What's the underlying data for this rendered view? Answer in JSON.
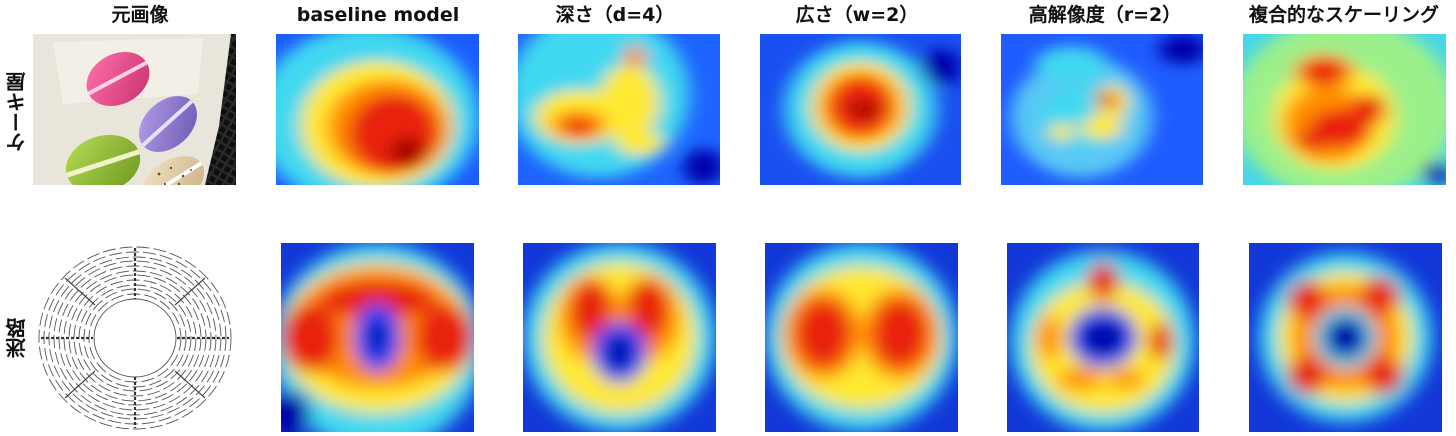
{
  "figure": {
    "columns": [
      "元画像",
      "baseline model",
      "深さ（d=4）",
      "広さ（w=2）",
      "高解像度（r=2）",
      "複合的なスケーリング"
    ],
    "rows": [
      "ケーキ屋",
      "迷路"
    ]
  }
}
